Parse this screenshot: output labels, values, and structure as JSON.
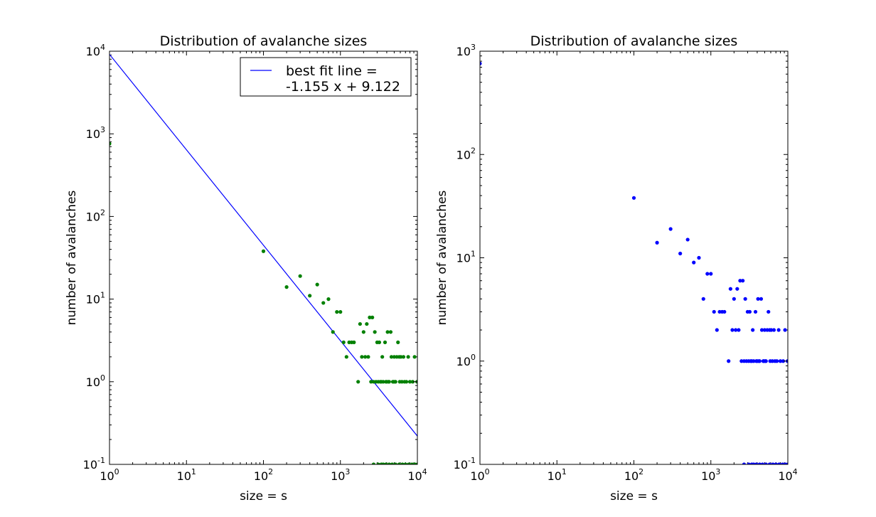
{
  "chart_data": [
    {
      "type": "scatter",
      "title": "Distribution of avalanche sizes",
      "xlabel": "size = s",
      "ylabel": "number of avalanches",
      "xscale": "log",
      "yscale": "log",
      "xlim": [
        1,
        10000
      ],
      "ylim": [
        0.1,
        10000
      ],
      "xticks": [
        {
          "base": "10",
          "exp": "0",
          "value": 1
        },
        {
          "base": "10",
          "exp": "1",
          "value": 10
        },
        {
          "base": "10",
          "exp": "2",
          "value": 100
        },
        {
          "base": "10",
          "exp": "3",
          "value": 1000
        },
        {
          "base": "10",
          "exp": "4",
          "value": 10000
        }
      ],
      "yticks": [
        {
          "base": "10",
          "exp": "-1",
          "value": 0.1
        },
        {
          "base": "10",
          "exp": "0",
          "value": 1
        },
        {
          "base": "10",
          "exp": "1",
          "value": 10
        },
        {
          "base": "10",
          "exp": "2",
          "value": 100
        },
        {
          "base": "10",
          "exp": "3",
          "value": 1000
        },
        {
          "base": "10",
          "exp": "4",
          "value": 10000
        }
      ],
      "grid": false,
      "legend_position": "top-right",
      "series": [
        {
          "name": "best fit line =\n-1.155 x + 9.122",
          "kind": "line",
          "color": "#0000ff",
          "x": [
            1,
            10000
          ],
          "y": [
            9155,
            0.22
          ]
        },
        {
          "kind": "points",
          "color": "#008000",
          "x": [
            1,
            100,
            200,
            300,
            400,
            500,
            600,
            700,
            800,
            900,
            1000,
            1100,
            1200,
            1300,
            1400,
            1500,
            1700,
            1800,
            1900,
            2000,
            2100,
            2200,
            2300,
            2400,
            2500,
            2600,
            2700,
            2800,
            2900,
            3000,
            3100,
            3200,
            3300,
            3400,
            3500,
            3600,
            3800,
            3900,
            4000,
            4100,
            4200,
            4300,
            4500,
            4600,
            4800,
            4900,
            5000,
            5100,
            5200,
            5400,
            5600,
            5800,
            5900,
            6100,
            6300,
            6600,
            6800,
            7200,
            7600,
            8000,
            8700,
            9200,
            9900,
            2700,
            3100,
            3400,
            3600,
            3900,
            4300,
            4700,
            5200,
            5800,
            6400,
            7000,
            7700,
            8500,
            9300,
            10000
          ],
          "y": [
            760,
            38,
            14,
            19,
            11,
            15,
            9,
            10,
            4,
            7,
            7,
            3,
            2,
            3,
            3,
            3,
            1,
            5,
            2,
            4,
            2,
            5,
            2,
            6,
            1,
            6,
            1,
            4,
            1,
            3,
            1,
            3,
            1,
            1,
            2,
            1,
            3,
            1,
            1,
            4,
            1,
            1,
            4,
            2,
            1,
            1,
            2,
            1,
            1,
            2,
            3,
            2,
            1,
            2,
            1,
            2,
            1,
            1,
            2,
            1,
            1,
            2,
            1,
            0.1,
            0.1,
            0.1,
            0.1,
            0.1,
            0.1,
            0.1,
            0.1,
            0.1,
            0.1,
            0.1,
            0.1,
            0.1,
            0.1,
            0.1
          ]
        }
      ]
    },
    {
      "type": "scatter",
      "title": "Distribution of avalanche sizes",
      "xlabel": "size = s",
      "ylabel": "number of avalanches",
      "xscale": "log",
      "yscale": "log",
      "xlim": [
        1,
        10000
      ],
      "ylim": [
        0.1,
        1000
      ],
      "xticks": [
        {
          "base": "10",
          "exp": "0",
          "value": 1
        },
        {
          "base": "10",
          "exp": "1",
          "value": 10
        },
        {
          "base": "10",
          "exp": "2",
          "value": 100
        },
        {
          "base": "10",
          "exp": "3",
          "value": 1000
        },
        {
          "base": "10",
          "exp": "4",
          "value": 10000
        }
      ],
      "yticks": [
        {
          "base": "10",
          "exp": "-1",
          "value": 0.1
        },
        {
          "base": "10",
          "exp": "0",
          "value": 1
        },
        {
          "base": "10",
          "exp": "1",
          "value": 10
        },
        {
          "base": "10",
          "exp": "2",
          "value": 100
        },
        {
          "base": "10",
          "exp": "3",
          "value": 1000
        }
      ],
      "grid": false,
      "series": [
        {
          "kind": "points",
          "color": "#0000ff",
          "x": [
            1,
            100,
            200,
            300,
            400,
            500,
            600,
            700,
            800,
            900,
            1000,
            1100,
            1200,
            1300,
            1400,
            1500,
            1700,
            1800,
            1900,
            2000,
            2100,
            2200,
            2300,
            2400,
            2500,
            2600,
            2700,
            2800,
            2900,
            3000,
            3100,
            3200,
            3300,
            3400,
            3500,
            3600,
            3800,
            3900,
            4000,
            4100,
            4200,
            4300,
            4500,
            4600,
            4800,
            4900,
            5000,
            5100,
            5200,
            5400,
            5600,
            5800,
            5900,
            6100,
            6300,
            6600,
            6800,
            7200,
            7600,
            8000,
            8700,
            9200,
            9900,
            2700,
            3100,
            3400,
            3600,
            3900,
            4300,
            4700,
            5200,
            5800,
            6400,
            7000,
            7700,
            8500,
            9300,
            10000
          ],
          "y": [
            760,
            38,
            14,
            19,
            11,
            15,
            9,
            10,
            4,
            7,
            7,
            3,
            2,
            3,
            3,
            3,
            1,
            5,
            2,
            4,
            2,
            5,
            2,
            6,
            1,
            6,
            1,
            4,
            1,
            3,
            1,
            3,
            1,
            1,
            2,
            1,
            3,
            1,
            1,
            4,
            1,
            1,
            4,
            2,
            1,
            1,
            2,
            1,
            1,
            2,
            3,
            2,
            1,
            2,
            1,
            2,
            1,
            1,
            2,
            1,
            1,
            2,
            1,
            0.1,
            0.1,
            0.1,
            0.1,
            0.1,
            0.1,
            0.1,
            0.1,
            0.1,
            0.1,
            0.1,
            0.1,
            0.1,
            0.1,
            0.1
          ]
        }
      ]
    }
  ]
}
